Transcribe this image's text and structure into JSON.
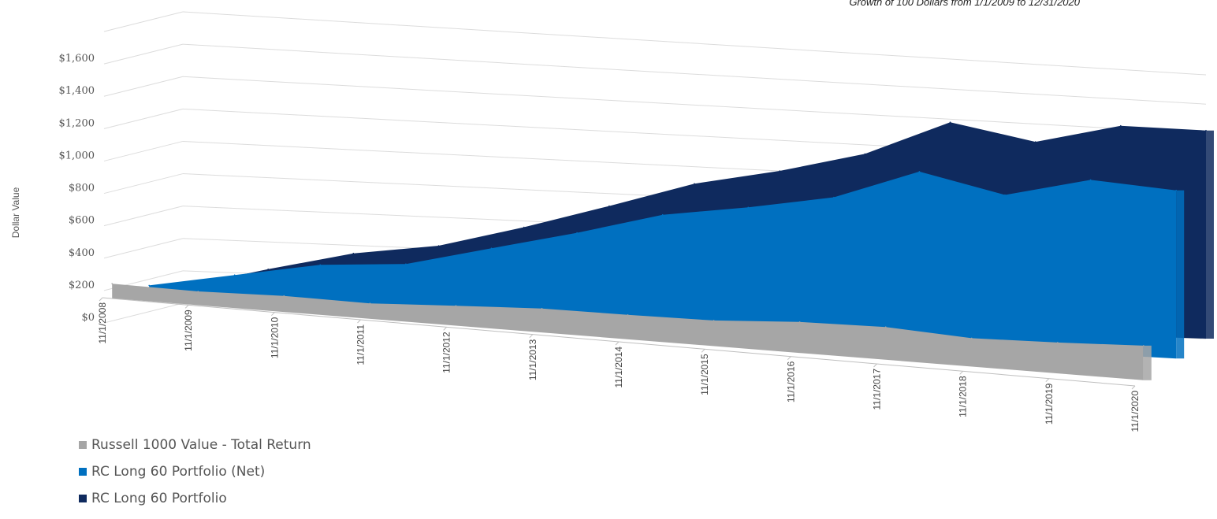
{
  "chart_data": {
    "type": "area",
    "title": "Growth of 100 Dollars from 1/1/2009 to 12/31/2020",
    "ylabel": "Dollar Value",
    "xlabel": "",
    "ylim": [
      0,
      1800
    ],
    "yticks": [
      "$0",
      "$200",
      "$400",
      "$600",
      "$800",
      "$1,000",
      "$1,200",
      "$1,400",
      "$1,600"
    ],
    "categories": [
      "11/1/2008",
      "11/1/2009",
      "11/1/2010",
      "11/1/2011",
      "11/1/2012",
      "11/1/2013",
      "11/1/2014",
      "11/1/2015",
      "11/1/2016",
      "11/1/2017",
      "11/1/2018",
      "11/1/2019",
      "11/1/2020"
    ],
    "series": [
      {
        "name": "Russell 1000 Value - Total Return",
        "color": "#a6a6a6",
        "values": [
          100,
          95,
          112,
          108,
          140,
          170,
          175,
          185,
          225,
          240,
          210,
          230,
          260
        ]
      },
      {
        "name": "RC Long 60 Portfolio (Net)",
        "color": "#0070c0",
        "values": [
          100,
          200,
          300,
          340,
          480,
          620,
          780,
          870,
          980,
          1200,
          1080,
          1230,
          1200
        ]
      },
      {
        "name": "RC Long 60 Portfolio",
        "color": "#0f2a5e",
        "values": [
          100,
          230,
          350,
          420,
          560,
          720,
          890,
          1000,
          1140,
          1380,
          1280,
          1420,
          1420
        ]
      }
    ],
    "grid": true,
    "legend_position": "bottom-left"
  }
}
